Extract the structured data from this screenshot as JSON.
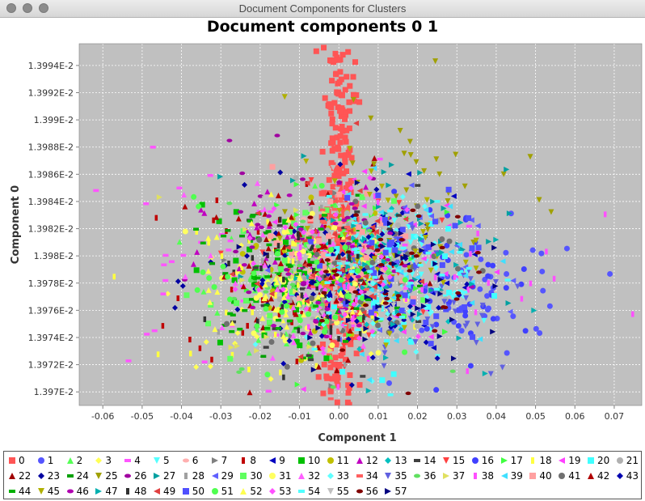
{
  "window": {
    "title": "Document Components for Clusters"
  },
  "chart_data": {
    "type": "scatter",
    "title": "Document components 0 1",
    "xlabel": "Component 1",
    "ylabel": "Component 0",
    "xlim": [
      -0.066,
      0.077
    ],
    "ylim": [
      0.013969,
      0.0139956
    ],
    "x_ticks": [
      "-0.06",
      "-0.05",
      "-0.04",
      "-0.03",
      "-0.02",
      "-0.01",
      "0.00",
      "0.01",
      "0.02",
      "0.03",
      "0.04",
      "0.05",
      "0.06",
      "0.07"
    ],
    "x_tick_values": [
      -0.06,
      -0.05,
      -0.04,
      -0.03,
      -0.02,
      -0.01,
      0,
      0.01,
      0.02,
      0.03,
      0.04,
      0.05,
      0.06,
      0.07
    ],
    "y_ticks": [
      "1.397E-2",
      "1.3972E-2",
      "1.3974E-2",
      "1.3976E-2",
      "1.3978E-2",
      "1.398E-2",
      "1.3982E-2",
      "1.3984E-2",
      "1.3986E-2",
      "1.3988E-2",
      "1.399E-2",
      "1.3992E-2",
      "1.3994E-2"
    ],
    "y_tick_values": [
      0.01397,
      0.013972,
      0.013974,
      0.013976,
      0.013978,
      0.01398,
      0.013982,
      0.013984,
      0.013986,
      0.013988,
      0.01399,
      0.013992,
      0.013994
    ],
    "grid": true,
    "legend_position": "bottom",
    "series": [
      {
        "name": "0",
        "color": "#ff5555",
        "shape": "square",
        "cx": 0.0,
        "sx": 0.0025,
        "cy": 0.013979,
        "sy": 1.5e-05
      },
      {
        "name": "1",
        "color": "#5555ff",
        "shape": "circle",
        "cx": 0.04,
        "sx": 0.012,
        "cy": 0.013977,
        "sy": 2.5e-06
      },
      {
        "name": "2",
        "color": "#55ff55",
        "shape": "triangle-up",
        "cx": -0.012,
        "sx": 0.01,
        "cy": 0.013978,
        "sy": 3e-06
      },
      {
        "name": "3",
        "color": "#ffff55",
        "shape": "diamond",
        "cx": -0.018,
        "sx": 0.011,
        "cy": 0.013977,
        "sy": 2.5e-06
      },
      {
        "name": "4",
        "color": "#ff55ff",
        "shape": "rect-h",
        "cx": -0.03,
        "sx": 0.02,
        "cy": 0.013979,
        "sy": 4e-06
      },
      {
        "name": "5",
        "color": "#55ffff",
        "shape": "triangle-down",
        "cx": 0.018,
        "sx": 0.01,
        "cy": 0.013978,
        "sy": 3e-06
      },
      {
        "name": "6",
        "color": "#ffafaf",
        "shape": "ellipse",
        "cx": -0.005,
        "sx": 0.01,
        "cy": 0.013979,
        "sy": 3e-06
      },
      {
        "name": "7",
        "color": "#808080",
        "shape": "triangle-right",
        "cx": 0.0,
        "sx": 0.01,
        "cy": 0.013979,
        "sy": 3e-06
      },
      {
        "name": "8",
        "color": "#c00000",
        "shape": "rect-v",
        "cx": -0.015,
        "sx": 0.012,
        "cy": 0.013979,
        "sy": 3.5e-06
      },
      {
        "name": "9",
        "color": "#0000c0",
        "shape": "triangle-left",
        "cx": 0.01,
        "sx": 0.012,
        "cy": 0.013979,
        "sy": 3e-06
      },
      {
        "name": "10",
        "color": "#00c000",
        "shape": "square",
        "cx": -0.018,
        "sx": 0.01,
        "cy": 0.013978,
        "sy": 3e-06
      },
      {
        "name": "11",
        "color": "#c0c000",
        "shape": "circle",
        "cx": -0.005,
        "sx": 0.01,
        "cy": 0.013979,
        "sy": 3e-06
      },
      {
        "name": "12",
        "color": "#c000c0",
        "shape": "triangle-up",
        "cx": -0.01,
        "sx": 0.012,
        "cy": 0.013979,
        "sy": 3e-06
      },
      {
        "name": "13",
        "color": "#00c0c0",
        "shape": "diamond",
        "cx": 0.005,
        "sx": 0.01,
        "cy": 0.013978,
        "sy": 3e-06
      },
      {
        "name": "14",
        "color": "#404040",
        "shape": "rect-h",
        "cx": 0.0,
        "sx": 0.012,
        "cy": 0.013979,
        "sy": 3e-06
      },
      {
        "name": "15",
        "color": "#ff4040",
        "shape": "triangle-down",
        "cx": 0.0,
        "sx": 0.01,
        "cy": 0.013979,
        "sy": 3e-06
      },
      {
        "name": "16",
        "color": "#4040ff",
        "shape": "circle",
        "cx": 0.03,
        "sx": 0.01,
        "cy": 0.013978,
        "sy": 3e-06
      },
      {
        "name": "17",
        "color": "#40ff40",
        "shape": "triangle-right",
        "cx": 0.01,
        "sx": 0.015,
        "cy": 0.013979,
        "sy": 3e-06
      },
      {
        "name": "18",
        "color": "#ffff40",
        "shape": "rect-v",
        "cx": -0.012,
        "sx": 0.012,
        "cy": 0.013978,
        "sy": 3e-06
      },
      {
        "name": "19",
        "color": "#ff40ff",
        "shape": "triangle-left",
        "cx": 0.01,
        "sx": 0.015,
        "cy": 0.013979,
        "sy": 3e-06
      },
      {
        "name": "20",
        "color": "#40ffff",
        "shape": "square",
        "cx": 0.012,
        "sx": 0.01,
        "cy": 0.013978,
        "sy": 3e-06
      },
      {
        "name": "21",
        "color": "#b0b0b0",
        "shape": "circle",
        "cx": 0.0,
        "sx": 0.01,
        "cy": 0.013979,
        "sy": 3e-06
      },
      {
        "name": "22",
        "color": "#a00000",
        "shape": "triangle-up",
        "cx": -0.005,
        "sx": 0.012,
        "cy": 0.013979,
        "sy": 3e-06
      },
      {
        "name": "23",
        "color": "#0000a0",
        "shape": "diamond",
        "cx": -0.01,
        "sx": 0.012,
        "cy": 0.013978,
        "sy": 3e-06
      },
      {
        "name": "24",
        "color": "#00a000",
        "shape": "rect-h",
        "cx": -0.015,
        "sx": 0.012,
        "cy": 0.013979,
        "sy": 3e-06
      },
      {
        "name": "25",
        "color": "#a0a000",
        "shape": "triangle-down",
        "cx": 0.02,
        "sx": 0.015,
        "cy": 0.013984,
        "sy": 4e-06
      },
      {
        "name": "26",
        "color": "#a000a0",
        "shape": "ellipse",
        "cx": -0.01,
        "sx": 0.012,
        "cy": 0.013981,
        "sy": 3e-06
      },
      {
        "name": "27",
        "color": "#00a0a0",
        "shape": "triangle-right",
        "cx": 0.015,
        "sx": 0.015,
        "cy": 0.013982,
        "sy": 3e-06
      },
      {
        "name": "28",
        "color": "#a0a0a0",
        "shape": "rect-v",
        "cx": 0.0,
        "sx": 0.012,
        "cy": 0.013979,
        "sy": 3e-06
      },
      {
        "name": "29",
        "color": "#6060ff",
        "shape": "triangle-left",
        "cx": 0.01,
        "sx": 0.012,
        "cy": 0.013979,
        "sy": 3e-06
      },
      {
        "name": "30",
        "color": "#60ff60",
        "shape": "square",
        "cx": -0.01,
        "sx": 0.012,
        "cy": 0.013978,
        "sy": 3e-06
      },
      {
        "name": "31",
        "color": "#ffff60",
        "shape": "circle",
        "cx": -0.008,
        "sx": 0.012,
        "cy": 0.013977,
        "sy": 3e-06
      },
      {
        "name": "32",
        "color": "#ff60ff",
        "shape": "triangle-up",
        "cx": -0.01,
        "sx": 0.012,
        "cy": 0.013979,
        "sy": 3e-06
      },
      {
        "name": "33",
        "color": "#60ffff",
        "shape": "diamond",
        "cx": 0.012,
        "sx": 0.01,
        "cy": 0.013978,
        "sy": 3e-06
      },
      {
        "name": "34",
        "color": "#ff6060",
        "shape": "rect-h",
        "cx": 0.0,
        "sx": 0.004,
        "cy": 0.013979,
        "sy": 4e-06
      },
      {
        "name": "35",
        "color": "#6060e0",
        "shape": "triangle-down",
        "cx": 0.025,
        "sx": 0.012,
        "cy": 0.013977,
        "sy": 3e-06
      },
      {
        "name": "36",
        "color": "#60e060",
        "shape": "ellipse",
        "cx": -0.005,
        "sx": 0.012,
        "cy": 0.013978,
        "sy": 3e-06
      },
      {
        "name": "37",
        "color": "#e0e060",
        "shape": "triangle-right",
        "cx": -0.005,
        "sx": 0.012,
        "cy": 0.013978,
        "sy": 3e-06
      },
      {
        "name": "38",
        "color": "#ff50ff",
        "shape": "rect-v",
        "cx": 0.02,
        "sx": 0.02,
        "cy": 0.013979,
        "sy": 4e-06
      },
      {
        "name": "39",
        "color": "#40e0ff",
        "shape": "triangle-left",
        "cx": 0.015,
        "sx": 0.012,
        "cy": 0.013979,
        "sy": 3e-06
      },
      {
        "name": "40",
        "color": "#ffa0a0",
        "shape": "square",
        "cx": 0.0,
        "sx": 0.012,
        "cy": 0.01398,
        "sy": 3e-06
      },
      {
        "name": "41",
        "color": "#707070",
        "shape": "circle",
        "cx": 0.005,
        "sx": 0.012,
        "cy": 0.013979,
        "sy": 3e-06
      },
      {
        "name": "42",
        "color": "#b00000",
        "shape": "triangle-up",
        "cx": -0.01,
        "sx": 0.012,
        "cy": 0.013979,
        "sy": 3e-06
      },
      {
        "name": "43",
        "color": "#0000b0",
        "shape": "diamond",
        "cx": 0.01,
        "sx": 0.012,
        "cy": 0.013977,
        "sy": 3e-06
      },
      {
        "name": "44",
        "color": "#00b000",
        "shape": "rect-h",
        "cx": -0.015,
        "sx": 0.012,
        "cy": 0.013978,
        "sy": 3e-06
      },
      {
        "name": "45",
        "color": "#b0b000",
        "shape": "triangle-down",
        "cx": 0.01,
        "sx": 0.012,
        "cy": 0.013981,
        "sy": 3e-06
      },
      {
        "name": "46",
        "color": "#b000b0",
        "shape": "ellipse",
        "cx": 0.0,
        "sx": 0.012,
        "cy": 0.013979,
        "sy": 3e-06
      },
      {
        "name": "47",
        "color": "#00b0b0",
        "shape": "triangle-right",
        "cx": 0.01,
        "sx": 0.012,
        "cy": 0.013979,
        "sy": 3e-06
      },
      {
        "name": "48",
        "color": "#303030",
        "shape": "rect-v",
        "cx": -0.01,
        "sx": 0.012,
        "cy": 0.013978,
        "sy": 3e-06
      },
      {
        "name": "49",
        "color": "#e04040",
        "shape": "triangle-left",
        "cx": 0.0,
        "sx": 0.012,
        "cy": 0.013979,
        "sy": 3e-06
      },
      {
        "name": "50",
        "color": "#5050ff",
        "shape": "square",
        "cx": 0.015,
        "sx": 0.012,
        "cy": 0.013979,
        "sy": 3e-06
      },
      {
        "name": "51",
        "color": "#50ff50",
        "shape": "circle",
        "cx": -0.012,
        "sx": 0.012,
        "cy": 0.013978,
        "sy": 3e-06
      },
      {
        "name": "52",
        "color": "#ffff50",
        "shape": "triangle-up",
        "cx": -0.015,
        "sx": 0.012,
        "cy": 0.013978,
        "sy": 3e-06
      },
      {
        "name": "53",
        "color": "#ff50ff",
        "shape": "diamond",
        "cx": 0.0,
        "sx": 0.012,
        "cy": 0.013979,
        "sy": 3e-06
      },
      {
        "name": "54",
        "color": "#50ffff",
        "shape": "rect-h",
        "cx": 0.012,
        "sx": 0.012,
        "cy": 0.013979,
        "sy": 3e-06
      },
      {
        "name": "55",
        "color": "#c0c0c0",
        "shape": "triangle-down",
        "cx": 0.005,
        "sx": 0.012,
        "cy": 0.01398,
        "sy": 3e-06
      },
      {
        "name": "56",
        "color": "#800000",
        "shape": "ellipse",
        "cx": 0.01,
        "sx": 0.012,
        "cy": 0.013979,
        "sy": 3e-06
      },
      {
        "name": "57",
        "color": "#000080",
        "shape": "triangle-right",
        "cx": 0.01,
        "sx": 0.012,
        "cy": 0.013978,
        "sy": 3e-06
      }
    ]
  }
}
